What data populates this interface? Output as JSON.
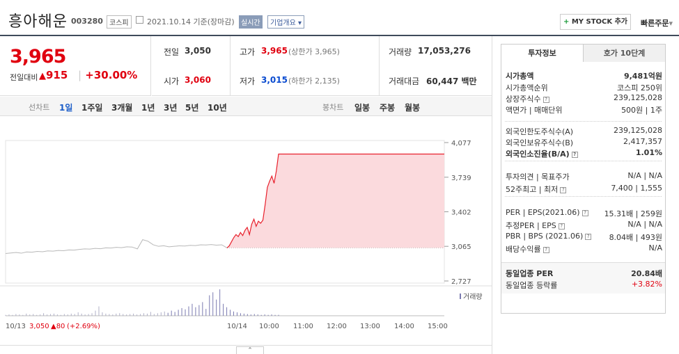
{
  "header": {
    "name": "흥아해운",
    "code": "003280",
    "market": "코스피",
    "date": "2021.10.14 기준(장마감)",
    "realtime": "실시간",
    "overview": "기업개요",
    "mystock": "MY STOCK 추가",
    "quick": "빠른주문"
  },
  "price": {
    "current": "3,965",
    "compare_label": "전일대비",
    "change": "915",
    "rate": "+30.00%"
  },
  "quote": {
    "prev_label": "전일",
    "prev": "3,050",
    "high_label": "고가",
    "high": "3,965",
    "high_sub": "(상한가 3,965)",
    "vol_label": "거래량",
    "vol": "17,053,276",
    "open_label": "시가",
    "open": "3,060",
    "low_label": "저가",
    "low": "3,015",
    "low_sub": "(하한가 2,135)",
    "amt_label": "거래대금",
    "amt": "60,447",
    "amt_unit": "백만"
  },
  "tabs": {
    "line_label": "선차트",
    "line": [
      "1일",
      "1주일",
      "3개월",
      "1년",
      "3년",
      "5년",
      "10년"
    ],
    "candle_label": "봉차트",
    "candle": [
      "일봉",
      "주봉",
      "월봉"
    ]
  },
  "chart_data": {
    "type": "line",
    "y_ticks": [
      "4,077",
      "3,739",
      "3,402",
      "3,065",
      "2,727"
    ],
    "ylim": [
      2727,
      4077
    ],
    "prev_close": 3050,
    "volume_label": "거래량",
    "x_ticks": [
      "10/13",
      "10/14",
      "10:00",
      "11:00",
      "12:00",
      "13:00",
      "14:00",
      "15:00"
    ],
    "prev_day_label": "10/13",
    "prev_day_price": "3,050",
    "prev_day_change": "80",
    "prev_day_rate": "(+2.69%)",
    "series": [
      {
        "values": [
          2995,
          3000,
          3005,
          2998,
          3010,
          3008,
          3015,
          3012,
          3020,
          3018,
          3025,
          3022,
          3030,
          3028,
          3035,
          3040,
          3038,
          3045,
          3042,
          3050,
          3048,
          3055,
          3052,
          3060,
          3058,
          3040,
          3130,
          3115,
          3080,
          3065,
          3070,
          3060,
          3065,
          3070,
          3068,
          3075,
          3072,
          3080,
          3078,
          3082,
          3076,
          3080,
          3050
        ]
      },
      {
        "values": [
          3050,
          3070,
          3110,
          3150,
          3180,
          3160,
          3200,
          3170,
          3220,
          3250,
          3180,
          3280,
          3330,
          3260,
          3310,
          3290,
          3320,
          3470,
          3640,
          3700,
          3750,
          3680,
          3800,
          3965,
          3965,
          3965,
          3965,
          3965,
          3965
        ]
      }
    ],
    "volume": [
      2,
      3,
      2,
      4,
      3,
      2,
      5,
      3,
      4,
      2,
      3,
      6,
      3,
      4,
      5,
      3,
      2,
      4,
      3,
      5,
      4,
      8,
      5,
      3,
      4,
      6,
      12,
      22,
      8,
      5,
      4,
      3,
      5,
      6,
      4,
      3,
      4,
      5,
      3,
      4,
      6,
      5,
      9,
      4,
      6,
      8,
      10,
      7,
      12,
      9,
      14,
      18,
      15,
      22,
      28,
      20,
      25,
      32,
      16,
      48,
      55,
      38,
      62,
      28,
      20,
      14,
      10,
      8,
      6,
      5,
      4,
      3,
      4,
      3,
      2,
      3,
      2,
      3,
      2,
      2
    ]
  },
  "right_panel": {
    "tab1": "투자정보",
    "tab2": "호가 10단계",
    "rows": [
      {
        "k": "시가총액",
        "v": "9,481억원",
        "bold": true
      },
      {
        "k": "시가총액순위",
        "v": "코스피 250위"
      },
      {
        "k": "상장주식수",
        "v": "239,125,028"
      },
      {
        "k": "액면가 | 매매단위",
        "v": "500원 | 1주"
      },
      {
        "k": "외국인한도주식수(A)",
        "v": "239,125,028"
      },
      {
        "k": "외국인보유주식수(B)",
        "v": "2,417,357"
      },
      {
        "k": "외국인소진율(B/A)",
        "v": "1.01%",
        "bold": true
      },
      {
        "k": "투자의견 | 목표주가",
        "v": "N/A | N/A"
      },
      {
        "k": "52주최고 | 최저",
        "v": "7,400 | 1,555"
      },
      {
        "k": "PER | EPS(2021.06)",
        "v": "15.31배 | 259원"
      },
      {
        "k": "추정PER | EPS",
        "v": "N/A | N/A"
      },
      {
        "k": "PBR | BPS (2021.06)",
        "v": "8.04배 | 493원"
      },
      {
        "k": "배당수익률",
        "v": "N/A"
      },
      {
        "k": "동일업종 PER",
        "v": "20.84배",
        "bold": true
      },
      {
        "k": "동일업종 등락률",
        "v": "+3.82%",
        "red": true
      }
    ]
  }
}
